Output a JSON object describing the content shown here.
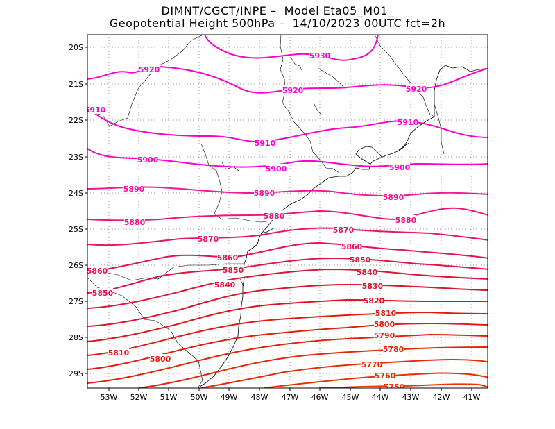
{
  "title_line1": "DIMNT/CGCT/INPE –  Model Eta05_M01_",
  "title_line2": "Geopotential Height 500hPa –  14/10/2023 00UTC fct=2h",
  "lat_labels": [
    "20S",
    "21S",
    "22S",
    "23S",
    "24S",
    "25S",
    "26S",
    "27S",
    "28S",
    "29S"
  ],
  "lon_labels": [
    "53W",
    "52W",
    "51W",
    "50W",
    "49W",
    "48W",
    "47W",
    "46W",
    "45W",
    "44W",
    "43W",
    "42W",
    "41W"
  ],
  "contour_labels": [
    "5930",
    "5920",
    "5920",
    "5920",
    "5910",
    "5910",
    "5910",
    "5900",
    "5900",
    "5900",
    "5890",
    "5890",
    "5890",
    "5880",
    "5880",
    "5880",
    "5870",
    "5870",
    "5860",
    "5860",
    "5860",
    "5850",
    "5850",
    "5850",
    "5840",
    "5840",
    "5830",
    "5820",
    "5810",
    "5810",
    "5800",
    "5800",
    "5790",
    "5780",
    "5770",
    "5760",
    "5750"
  ],
  "colors": {
    "high": "#ff00cc",
    "low": "#ff3300",
    "grid": "#999999",
    "coast": "#000000"
  }
}
